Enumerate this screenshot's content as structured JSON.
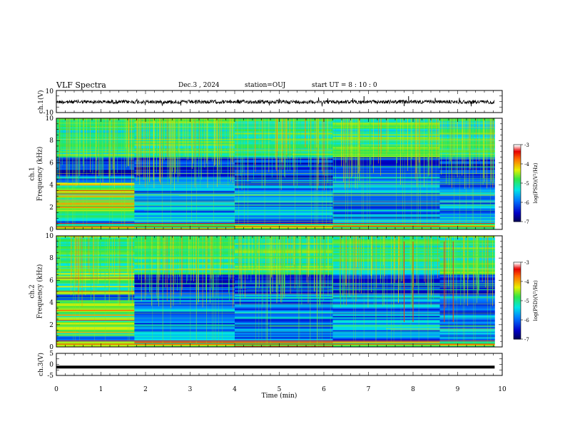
{
  "header": {
    "title": "VLF Spectra",
    "date": "Dec.3  , 2024",
    "station": "station=OUJ",
    "start": "start  UT  =   8  : 10 : 0"
  },
  "chart_data": [
    {
      "type": "line",
      "name": "ch1-waveform",
      "ylabel": "ch.1(V)",
      "xlim": [
        0,
        10
      ],
      "ylim": [
        -10,
        10
      ],
      "yticklabels": [
        "10",
        "-10"
      ],
      "x_data_end": 9.83,
      "description_level": "noise around 0 V with amplitude ~±2 V and occasional spikes up to ~±5 V"
    },
    {
      "type": "heatmap",
      "name": "ch1-spectrogram",
      "ylabel": "ch.1\nFrequency  (kHz)",
      "xlim": [
        0,
        10
      ],
      "ylim": [
        0,
        10
      ],
      "yticklabels": [
        "0",
        "2",
        "4",
        "6",
        "8",
        "10"
      ],
      "colorbar": {
        "label": "log(PSD)(V²/Hz)",
        "range": [
          -7,
          -3
        ],
        "ticklabels": [
          "-3",
          "-4",
          "-5",
          "-6",
          "-7"
        ]
      },
      "x_data_end": 9.83
    },
    {
      "type": "heatmap",
      "name": "ch2-spectrogram",
      "ylabel": "ch.2\nFrequency  (kHz)",
      "xlim": [
        0,
        10
      ],
      "ylim": [
        0,
        10
      ],
      "yticklabels": [
        "0",
        "2",
        "4",
        "6",
        "8",
        "10"
      ],
      "colorbar": {
        "label": "log(PSD)(V²/Hz)",
        "range": [
          -7,
          -3
        ],
        "ticklabels": [
          "-3",
          "-4",
          "-5",
          "-6",
          "-7"
        ]
      },
      "x_data_end": 9.83
    },
    {
      "type": "line",
      "name": "ch3-waveform",
      "ylabel": "ch.3(V)",
      "xlabel": "Time  (min)",
      "xlim": [
        0,
        10
      ],
      "ylim": [
        -5,
        5
      ],
      "yticklabels": [
        "5",
        "0",
        "-5"
      ],
      "xticklabels": [
        "0",
        "1",
        "2",
        "3",
        "4",
        "5",
        "6",
        "7",
        "8",
        "9",
        "10"
      ],
      "constant_value": -1.2,
      "x_data_end": 9.83
    }
  ]
}
